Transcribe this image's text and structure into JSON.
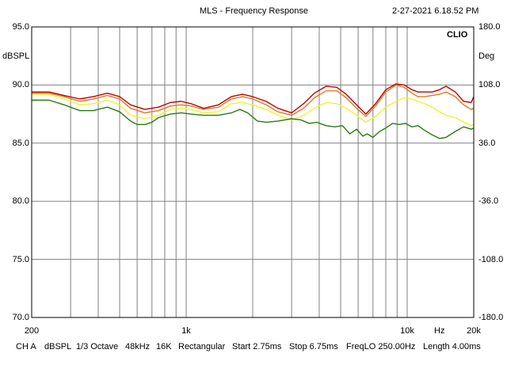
{
  "header": {
    "title": "MLS - Frequency Response",
    "timestamp": "2-27-2021 6.18.52 PM",
    "brand": "CLIO"
  },
  "footer": {
    "channel": "CH A",
    "unit": "dBSPL",
    "smoothing": "1/3 Octave",
    "sample_rate": "48kHz",
    "fft_size": "16K",
    "window": "Rectangular",
    "start": "Start 2.75ms",
    "stop": "Stop 6.75ms",
    "freq_lo": "FreqLO 250.00Hz",
    "length": "Length 4.00ms"
  },
  "chart_data": {
    "type": "line",
    "title": "MLS - Frequency Response",
    "xscale": "log",
    "xlim": [
      200,
      20000
    ],
    "ylim": [
      70,
      95
    ],
    "y2lim": [
      -180,
      180
    ],
    "grid": true,
    "xlabel": "Hz",
    "ylabel": "dBSPL",
    "y2label": "Deg",
    "x_tick_labels": [
      {
        "value": 200,
        "label": "200"
      },
      {
        "value": 1000,
        "label": "1k"
      },
      {
        "value": 10000,
        "label": "10k"
      },
      {
        "value": 20000,
        "label": "20k"
      }
    ],
    "x_unit_label": {
      "value": 14000,
      "label": "Hz"
    },
    "y_ticks": [
      {
        "value": 95,
        "label": "95.0"
      },
      {
        "value": 90,
        "label": "90.0"
      },
      {
        "value": 85,
        "label": "85.0"
      },
      {
        "value": 80,
        "label": "80.0"
      },
      {
        "value": 75,
        "label": "75.0"
      },
      {
        "value": 70,
        "label": "70.0"
      }
    ],
    "y2_ticks": [
      {
        "value": 180,
        "label": "180.0"
      },
      {
        "value": 108,
        "label": "108.0"
      },
      {
        "value": 36,
        "label": "36.0"
      },
      {
        "value": -36,
        "label": "-36.0"
      },
      {
        "value": -108,
        "label": "-108.0"
      },
      {
        "value": -180,
        "label": "-180.0"
      }
    ],
    "series": [
      {
        "color": "#c00000",
        "x": [
          200,
          240,
          280,
          330,
          380,
          440,
          500,
          560,
          650,
          750,
          850,
          950,
          1050,
          1200,
          1400,
          1600,
          1800,
          2000,
          2300,
          2600,
          3000,
          3400,
          3800,
          4300,
          4800,
          5300,
          5900,
          6500,
          7200,
          8000,
          8900,
          9700,
          10500,
          11200,
          12000,
          13000,
          14000,
          15000,
          16500,
          18000,
          19500,
          20000
        ],
        "y": [
          89.4,
          89.4,
          89.1,
          88.8,
          89.0,
          89.3,
          89.0,
          88.3,
          87.9,
          88.1,
          88.5,
          88.6,
          88.4,
          88.0,
          88.3,
          89.0,
          89.2,
          89.0,
          88.6,
          88.0,
          87.6,
          88.4,
          89.3,
          89.9,
          89.8,
          89.2,
          88.3,
          87.5,
          88.4,
          89.6,
          90.1,
          90.0,
          89.6,
          89.4,
          89.4,
          89.4,
          89.6,
          89.9,
          89.4,
          88.6,
          88.5,
          89.0
        ]
      },
      {
        "color": "#e07820",
        "x": [
          200,
          240,
          280,
          330,
          380,
          440,
          500,
          560,
          650,
          750,
          850,
          950,
          1050,
          1200,
          1400,
          1600,
          1800,
          2000,
          2300,
          2600,
          3000,
          3400,
          3800,
          4300,
          4800,
          5300,
          5900,
          6500,
          7200,
          8000,
          8900,
          9700,
          10500,
          11200,
          12000,
          13000,
          14000,
          15000,
          16500,
          18000,
          19500,
          20000
        ],
        "y": [
          89.3,
          89.3,
          89.0,
          88.6,
          88.8,
          89.1,
          88.8,
          88.0,
          87.6,
          87.8,
          88.2,
          88.3,
          88.2,
          87.9,
          88.1,
          88.8,
          89.0,
          88.8,
          88.3,
          87.7,
          87.4,
          88.0,
          88.9,
          89.5,
          89.5,
          88.9,
          88.0,
          87.3,
          88.2,
          89.4,
          90.0,
          89.8,
          89.3,
          89.0,
          89.0,
          89.1,
          89.2,
          89.4,
          89.0,
          88.3,
          87.9,
          88.0
        ]
      },
      {
        "color": "#f2f230",
        "x": [
          200,
          240,
          280,
          330,
          380,
          440,
          500,
          560,
          650,
          750,
          850,
          950,
          1050,
          1200,
          1400,
          1600,
          1800,
          2000,
          2300,
          2600,
          3000,
          3400,
          3800,
          4300,
          4800,
          5300,
          5900,
          6500,
          7200,
          8000,
          8900,
          9700,
          10500,
          11200,
          12000,
          13000,
          14000,
          15000,
          16500,
          18000,
          19500,
          20000
        ],
        "y": [
          89.2,
          89.2,
          88.8,
          88.3,
          88.4,
          88.7,
          88.3,
          87.4,
          87.1,
          87.4,
          87.9,
          88.0,
          87.9,
          87.6,
          87.7,
          88.4,
          88.5,
          88.3,
          87.9,
          87.4,
          87.0,
          87.4,
          88.0,
          88.5,
          88.4,
          88.0,
          87.4,
          86.8,
          87.3,
          88.1,
          88.6,
          88.9,
          88.8,
          88.6,
          88.4,
          88.1,
          87.7,
          87.4,
          87.2,
          86.8,
          86.5,
          86.6
        ]
      },
      {
        "color": "#2a7a10",
        "x": [
          200,
          240,
          280,
          330,
          380,
          440,
          500,
          560,
          600,
          650,
          700,
          750,
          850,
          950,
          1050,
          1200,
          1400,
          1600,
          1750,
          1900,
          2100,
          2300,
          2600,
          3000,
          3300,
          3600,
          3900,
          4300,
          4700,
          5100,
          5500,
          5900,
          6300,
          6600,
          7000,
          7500,
          8000,
          8600,
          9200,
          9800,
          10500,
          11200,
          12000,
          13000,
          14000,
          15000,
          16500,
          18000,
          19500,
          20000
        ],
        "y": [
          88.7,
          88.7,
          88.3,
          87.8,
          87.8,
          88.1,
          87.7,
          86.9,
          86.6,
          86.6,
          86.8,
          87.2,
          87.5,
          87.6,
          87.5,
          87.4,
          87.4,
          87.6,
          87.9,
          87.6,
          86.9,
          86.8,
          86.9,
          87.1,
          87.0,
          86.7,
          86.8,
          86.5,
          86.4,
          86.5,
          85.8,
          86.2,
          85.6,
          85.8,
          85.5,
          86.0,
          86.3,
          86.7,
          86.6,
          86.7,
          86.4,
          86.5,
          86.1,
          85.7,
          85.4,
          85.5,
          86.0,
          86.4,
          86.2,
          86.3
        ]
      }
    ]
  }
}
